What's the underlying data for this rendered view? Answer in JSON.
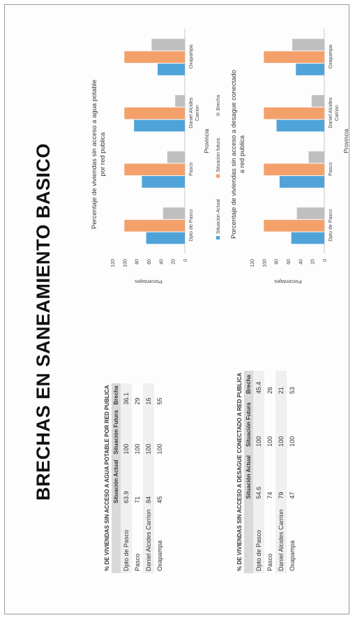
{
  "slide_title": "BRECHAS EN SANEAMIENTO BASICO",
  "table1": {
    "caption": "% DE VIVIENDAS SIN ACCESO A AGUA POTABLE POR RED PUBLICA",
    "headers": [
      "",
      "Situación Actual",
      "Situación Futura",
      "Brecha"
    ],
    "rows": [
      [
        "Dpto de Pasco",
        "63.9",
        "100",
        "36.1"
      ],
      [
        "Pasco",
        "71",
        "100",
        "29"
      ],
      [
        "Daniel Alcides Carrion",
        "84",
        "100",
        "16"
      ],
      [
        "Oxapampa",
        "45",
        "100",
        "55"
      ]
    ]
  },
  "table2": {
    "caption": "% DE VIVIENDAS SIN ACCESO A DESAGUE CONECTADO A RED PUBLICA",
    "headers": [
      "",
      "Situación Actual",
      "Situación Futura",
      "Brecha"
    ],
    "rows": [
      [
        "Dpto de Pasco",
        "54.6",
        "100",
        "45.4"
      ],
      [
        "Pasco",
        "74",
        "100",
        "26"
      ],
      [
        "Daniel Alcides Carrion",
        "79",
        "100",
        "21"
      ],
      [
        "Oxapampa",
        "47",
        "100",
        "53"
      ]
    ]
  },
  "chart_data": [
    {
      "type": "bar",
      "title": "Percentaje de viviendas sin acceso a agua potable por red publica",
      "xlabel": "Provincia",
      "ylabel": "Porcentajes",
      "ylim": [
        0,
        120
      ],
      "yticks": [
        0,
        20,
        40,
        60,
        80,
        100,
        120
      ],
      "categories": [
        "Dpto de Pasco",
        "Pasco",
        "Daniel Alcides Carrion",
        "Oxapampa"
      ],
      "series": [
        {
          "name": "Situacion Actual",
          "values": [
            63.9,
            71,
            84,
            45
          ],
          "color": "#4fa3d8"
        },
        {
          "name": "Situacion futura",
          "values": [
            100,
            100,
            100,
            100
          ],
          "color": "#f4a06b"
        },
        {
          "name": "Brecha",
          "values": [
            36.1,
            29,
            16,
            55
          ],
          "color": "#bfbfbf"
        }
      ],
      "legend_position": "bottom",
      "grid": false
    },
    {
      "type": "bar",
      "title": "Porcentaje de viviendas sin acceso a desague conectado a red publica",
      "xlabel": "Provincia",
      "ylabel": "Porcentajes",
      "ylim": [
        0,
        120
      ],
      "yticks": [
        0,
        20,
        40,
        60,
        80,
        100,
        120
      ],
      "categories": [
        "Dpto de Pasco",
        "Pasco",
        "Daniel Alcides Carrion",
        "Oxapampa"
      ],
      "series": [
        {
          "name": "Situacion Actual",
          "values": [
            54.6,
            74,
            79,
            47
          ],
          "color": "#4fa3d8"
        },
        {
          "name": "Situacion futura",
          "values": [
            100,
            100,
            100,
            100
          ],
          "color": "#f4a06b"
        },
        {
          "name": "brecha",
          "values": [
            45.4,
            26,
            21,
            53
          ],
          "color": "#bfbfbf"
        }
      ],
      "legend_position": "bottom",
      "grid": false
    }
  ]
}
